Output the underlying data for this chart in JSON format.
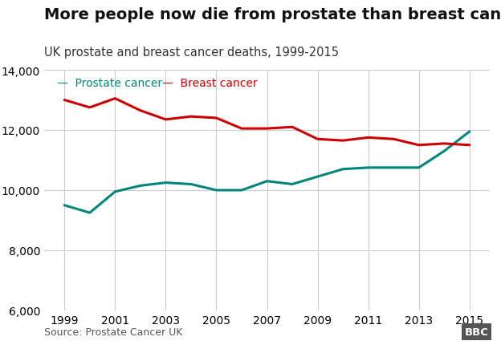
{
  "title": "More people now die from prostate than breast cancer",
  "subtitle": "UK prostate and breast cancer deaths, 1999-2015",
  "source": "Source: Prostate Cancer UK",
  "years": [
    1999,
    2000,
    2001,
    2002,
    2003,
    2004,
    2005,
    2006,
    2007,
    2008,
    2009,
    2010,
    2011,
    2012,
    2013,
    2014,
    2015
  ],
  "prostate": [
    9500,
    9250,
    9950,
    10150,
    10250,
    10200,
    10000,
    10000,
    10300,
    10200,
    10450,
    10700,
    10750,
    10750,
    10750,
    11300,
    11950
  ],
  "breast": [
    13000,
    12750,
    13050,
    12650,
    12350,
    12450,
    12400,
    12050,
    12050,
    12100,
    11700,
    11650,
    11750,
    11700,
    11500,
    11550,
    11500
  ],
  "prostate_color": "#00857c",
  "breast_color": "#cc0000",
  "background_color": "#ffffff",
  "grid_color": "#cccccc",
  "ylim": [
    6000,
    14000
  ],
  "yticks": [
    6000,
    8000,
    10000,
    12000,
    14000
  ],
  "xticks": [
    1999,
    2001,
    2003,
    2005,
    2007,
    2009,
    2011,
    2013,
    2015
  ],
  "title_fontsize": 14,
  "subtitle_fontsize": 10.5,
  "tick_fontsize": 10,
  "legend_fontsize": 10,
  "source_fontsize": 9,
  "line_width": 2.2
}
